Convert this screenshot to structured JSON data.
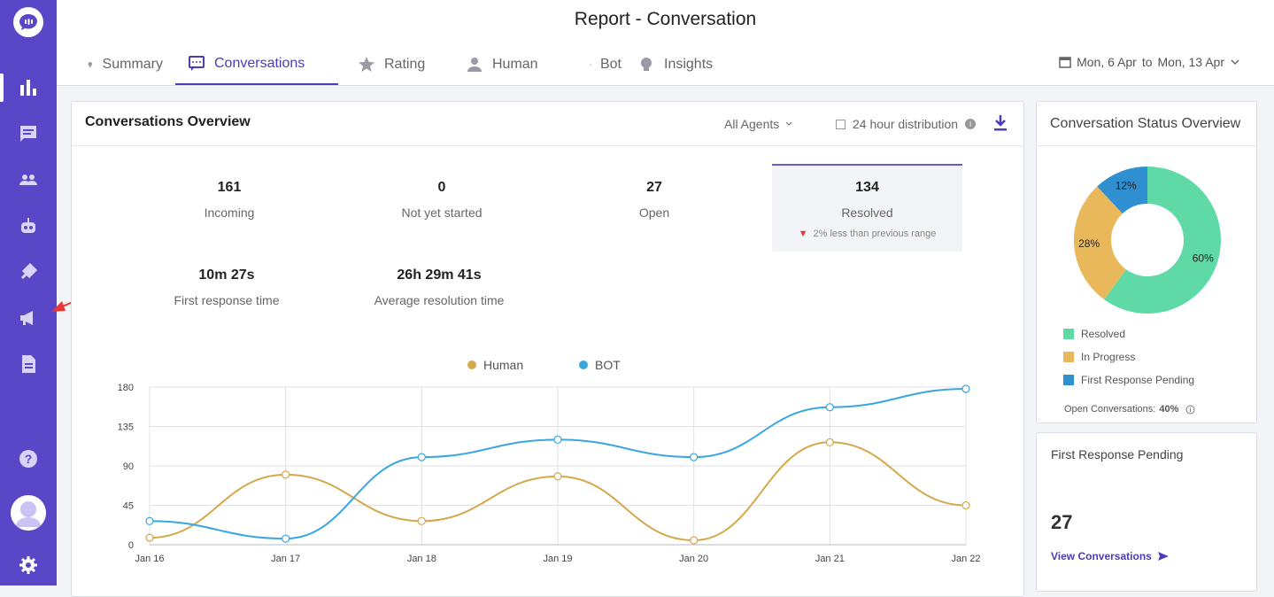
{
  "page": {
    "title": "Report - Conversation"
  },
  "sidebar": {
    "items": [
      {
        "icon": "bar-chart-icon",
        "active": true
      },
      {
        "icon": "chat-icon"
      },
      {
        "icon": "people-icon"
      },
      {
        "icon": "robot-icon"
      },
      {
        "icon": "plug-icon"
      },
      {
        "icon": "megaphone-icon"
      },
      {
        "icon": "document-icon"
      },
      {
        "icon": "help-icon"
      },
      {
        "icon": "gear-icon"
      }
    ]
  },
  "tabs": [
    {
      "label": "Summary",
      "icon": "lightbulb-icon"
    },
    {
      "label": "Conversations",
      "icon": "chat-icon",
      "active": true
    },
    {
      "label": "Rating",
      "icon": "star-icon"
    },
    {
      "label": "Human",
      "icon": "person-icon"
    },
    {
      "label": "Bot",
      "icon": "robot-icon"
    },
    {
      "label": "Insights",
      "icon": "lightbulb-icon"
    }
  ],
  "date_range": {
    "from": "Mon, 6 Apr",
    "to_word": "to",
    "to": "Mon, 13 Apr"
  },
  "overview": {
    "title": "Conversations Overview",
    "agents_filter": "All Agents",
    "distribution_label": "24 hour distribution",
    "metrics": [
      {
        "value": "161",
        "label": "Incoming"
      },
      {
        "value": "0",
        "label": "Not yet started"
      },
      {
        "value": "27",
        "label": "Open"
      },
      {
        "value": "134",
        "label": "Resolved",
        "trend": "2% less than previous range"
      },
      {
        "value": "10m 27s",
        "label": "First response time"
      },
      {
        "value": "26h 29m 41s",
        "label": "Average resolution time"
      }
    ]
  },
  "chart_data": {
    "type": "line",
    "x": [
      "Jan 16",
      "Jan 17",
      "Jan 18",
      "Jan 19",
      "Jan 20",
      "Jan 21",
      "Jan 22"
    ],
    "yticks": [
      "0",
      "45",
      "90",
      "135",
      "180"
    ],
    "ylim": [
      0,
      180
    ],
    "series": [
      {
        "name": "Human",
        "color": "#d4a84b",
        "values": [
          8,
          80,
          27,
          78,
          5,
          117,
          45
        ]
      },
      {
        "name": "BOT",
        "color": "#3aa6e0",
        "values": [
          27,
          7,
          100,
          120,
          100,
          157,
          178
        ]
      }
    ],
    "grid": true,
    "legend": "top"
  },
  "status": {
    "title": "Conversation Status Overview",
    "slices": [
      {
        "label": "Resolved",
        "pct": 60,
        "text": "60%",
        "color": "#5fdaa6"
      },
      {
        "label": "In Progress",
        "pct": 28,
        "text": "28%",
        "color": "#e9b85b"
      },
      {
        "label": "First Response Pending",
        "pct": 12,
        "text": "12%",
        "color": "#2f8fd0"
      }
    ],
    "open_label": "Open Conversations:",
    "open_value": "40%"
  },
  "frp": {
    "title": "First Response Pending",
    "value": "27",
    "link": "View Conversations"
  }
}
